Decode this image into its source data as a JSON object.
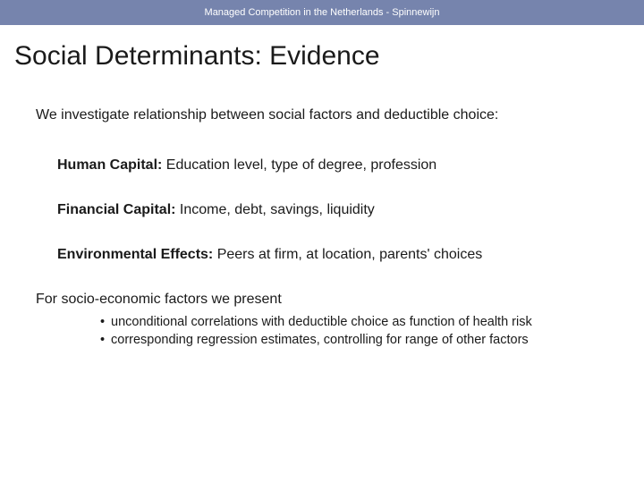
{
  "header": {
    "text": "Managed Competition in the Netherlands - Spinnewijn"
  },
  "title": "Social Determinants: Evidence",
  "intro": "We investigate relationship between social factors and deductible choice:",
  "items": [
    {
      "label": "Human Capital:",
      "desc": " Education level, type of degree, profession"
    },
    {
      "label": "Financial Capital:",
      "desc": " Income, debt, savings, liquidity"
    },
    {
      "label": "Environmental Effects:",
      "desc": " Peers at firm, at location, parents' choices"
    }
  ],
  "second_intro": "For socio-economic factors we present",
  "bullets": [
    "unconditional correlations with deductible choice as function of health risk",
    "corresponding regression estimates, controlling for range of other factors"
  ],
  "colors": {
    "header_bg": "#7684ad",
    "header_text": "#ffffff",
    "title_text": "#1a1a1a",
    "body_text": "#1a1a1a",
    "background": "#ffffff"
  },
  "typography": {
    "header_fontsize": 11,
    "title_fontsize": 30,
    "body_fontsize": 16,
    "bullet_fontsize": 14.5
  }
}
